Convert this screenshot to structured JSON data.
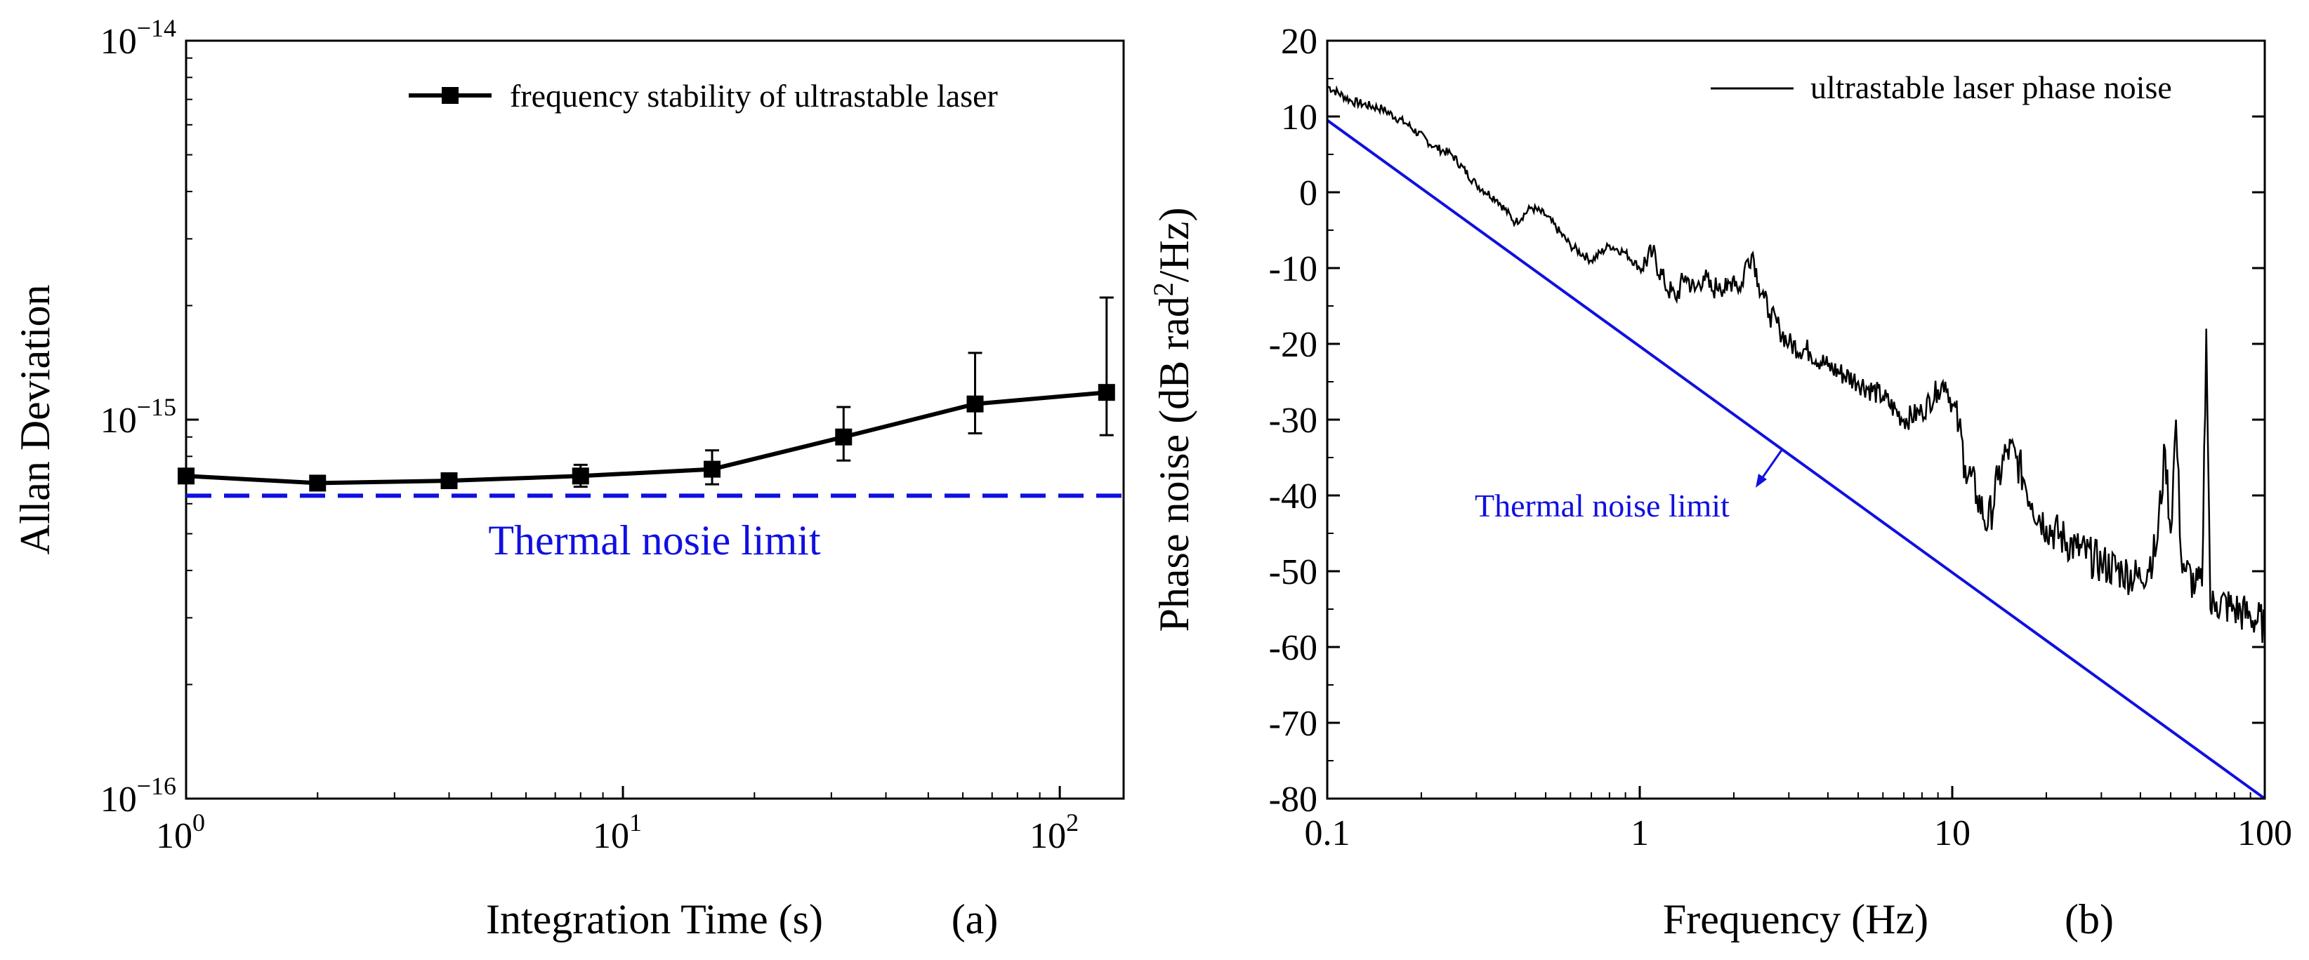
{
  "chart_data": [
    {
      "type": "line",
      "panel_label": "(a)",
      "xlabel": "Integration Time (s)",
      "ylabel": "Allan Deviation",
      "xscale": "log",
      "yscale": "log",
      "xlim": [
        1,
        140
      ],
      "ylim": [
        1e-16,
        1e-14
      ],
      "x_ticks": [
        {
          "value": 1,
          "base": "10",
          "exp": "0"
        },
        {
          "value": 10,
          "base": "10",
          "exp": "1"
        },
        {
          "value": 100,
          "base": "10",
          "exp": "2"
        }
      ],
      "y_ticks": [
        {
          "value": 1e-16,
          "base": "10",
          "exp": "−16"
        },
        {
          "value": 1e-15,
          "base": "10",
          "exp": "−15"
        },
        {
          "value": 1e-14,
          "base": "10",
          "exp": "−14"
        }
      ],
      "legend": {
        "position": "top-right",
        "label": "frequency stability of ultrastable laser"
      },
      "series": [
        {
          "name": "frequency stability of ultrastable laser",
          "color": "#000000",
          "marker": "square",
          "x": [
            1,
            2,
            4,
            8,
            16,
            32,
            64,
            128
          ],
          "y": [
            7.1e-16,
            6.8e-16,
            6.9e-16,
            7.1e-16,
            7.4e-16,
            9e-16,
            1.1e-15,
            1.18e-15
          ],
          "err_low": [
            7e-16,
            6.75e-16,
            6.8e-16,
            6.65e-16,
            6.75e-16,
            7.8e-16,
            9.2e-16,
            9.1e-16
          ],
          "err_high": [
            7.2e-16,
            6.9e-16,
            7.05e-16,
            7.6e-16,
            8.3e-16,
            1.08e-15,
            1.5e-15,
            2.1e-15
          ]
        }
      ],
      "reference": {
        "name": "Thermal nosie limit",
        "label": "Thermal nosie limit",
        "y": 6.3e-16,
        "color": "#1010e0",
        "style": "dashed"
      }
    },
    {
      "type": "line",
      "panel_label": "(b)",
      "xlabel": "Frequency (Hz)",
      "ylabel": "Phase noise (dB rad²/Hz)",
      "xscale": "log",
      "xlim": [
        0.1,
        100
      ],
      "ylim": [
        -80,
        20
      ],
      "x_ticks": [
        {
          "value": 0.1,
          "label": "0.1"
        },
        {
          "value": 1,
          "label": "1"
        },
        {
          "value": 10,
          "label": "10"
        },
        {
          "value": 100,
          "label": "100"
        }
      ],
      "y_ticks": [
        {
          "value": 20,
          "label": "20"
        },
        {
          "value": 10,
          "label": "10"
        },
        {
          "value": 0,
          "label": "0"
        },
        {
          "value": -10,
          "label": "-10"
        },
        {
          "value": -20,
          "label": "-20"
        },
        {
          "value": -30,
          "label": "-30"
        },
        {
          "value": -40,
          "label": "-40"
        },
        {
          "value": -50,
          "label": "-50"
        },
        {
          "value": -60,
          "label": "-60"
        },
        {
          "value": -70,
          "label": "-70"
        },
        {
          "value": -80,
          "label": "-80"
        }
      ],
      "legend": {
        "position": "top-right",
        "label": "ultrastable laser phase noise"
      },
      "series": [
        {
          "name": "ultrastable laser phase noise",
          "color": "#000000",
          "x": [
            0.1,
            0.12,
            0.15,
            0.18,
            0.22,
            0.25,
            0.3,
            0.35,
            0.4,
            0.45,
            0.5,
            0.6,
            0.7,
            0.8,
            0.9,
            1.0,
            1.1,
            1.2,
            1.3,
            1.4,
            1.5,
            1.6,
            1.7,
            1.8,
            1.9,
            2.0,
            2.1,
            2.2,
            2.3,
            2.4,
            2.5,
            2.6,
            2.8,
            3.0,
            3.5,
            4.0,
            5.0,
            6.0,
            7.0,
            8.0,
            9.0,
            9.5,
            10.0,
            10.5,
            11.0,
            12.0,
            13.0,
            14.0,
            15.0,
            16.0,
            17.0,
            18.0,
            20.0,
            25.0,
            30.0,
            35.0,
            40.0,
            45.0,
            48.0,
            50.0,
            52.0,
            54.0,
            56.0,
            60.0,
            63.0,
            65.0,
            67.0,
            70.0,
            80.0,
            90.0,
            100.0
          ],
          "y": [
            14,
            12,
            11,
            9,
            6,
            5,
            1,
            -1,
            -4,
            -2,
            -3,
            -7,
            -9,
            -7,
            -8,
            -10,
            -8,
            -12,
            -14,
            -11,
            -13,
            -11,
            -13,
            -12,
            -13,
            -11,
            -13,
            -9,
            -8,
            -12,
            -14,
            -16,
            -18,
            -20,
            -21,
            -23,
            -25,
            -27,
            -30,
            -29,
            -26,
            -25,
            -28,
            -31,
            -36,
            -40,
            -44,
            -38,
            -34,
            -35,
            -38,
            -41,
            -44,
            -47,
            -49,
            -50,
            -51,
            -47,
            -34,
            -45,
            -30,
            -48,
            -50,
            -52,
            -52,
            -18,
            -55,
            -54,
            -55,
            -56,
            -57
          ]
        },
        {
          "name": "Thermal noise limit",
          "color": "#1010e0",
          "x": [
            0.1,
            100
          ],
          "y": [
            9.5,
            -80
          ]
        }
      ],
      "annotation": {
        "text": "Thermal noise limit",
        "color": "#1010e0"
      }
    }
  ]
}
